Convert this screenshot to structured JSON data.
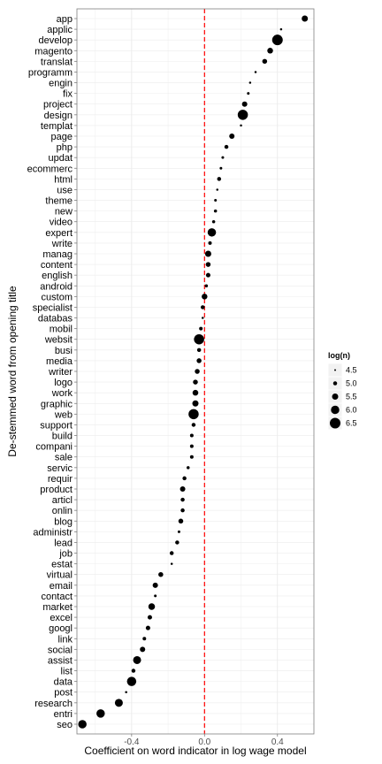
{
  "chart_data": {
    "type": "scatter",
    "title": "",
    "xlabel": "Coefficient on word indicator in log wage model",
    "ylabel": "De-stemmed word from opening title",
    "xlim": [
      -0.7,
      0.6
    ],
    "x_ticks": [
      -0.4,
      0.0,
      0.4
    ],
    "x_tick_labels": [
      "-0.4",
      "0.0",
      "0.4"
    ],
    "reference_line": {
      "x": 0.0,
      "color": "#ff0000",
      "style": "dashed"
    },
    "grid": true,
    "legend": {
      "title": "log(n)",
      "placement": "right",
      "values": [
        4.5,
        5.0,
        5.5,
        6.0,
        6.5
      ],
      "labels": [
        "4.5",
        "5.0",
        "5.5",
        "6.0",
        "6.5"
      ]
    },
    "size_range": [
      4.5,
      6.5
    ],
    "points": [
      {
        "label": "app",
        "x": 0.55,
        "logn": 5.5
      },
      {
        "label": "applic",
        "x": 0.42,
        "logn": 4.6
      },
      {
        "label": "develop",
        "x": 0.4,
        "logn": 6.5
      },
      {
        "label": "magento",
        "x": 0.36,
        "logn": 5.4
      },
      {
        "label": "translat",
        "x": 0.33,
        "logn": 5.2
      },
      {
        "label": "programm",
        "x": 0.28,
        "logn": 4.6
      },
      {
        "label": "engin",
        "x": 0.25,
        "logn": 4.6
      },
      {
        "label": "fix",
        "x": 0.24,
        "logn": 4.7
      },
      {
        "label": "project",
        "x": 0.22,
        "logn": 5.3
      },
      {
        "label": "design",
        "x": 0.21,
        "logn": 6.4
      },
      {
        "label": "templat",
        "x": 0.2,
        "logn": 4.6
      },
      {
        "label": "page",
        "x": 0.15,
        "logn": 5.3
      },
      {
        "label": "php",
        "x": 0.12,
        "logn": 5.0
      },
      {
        "label": "updat",
        "x": 0.1,
        "logn": 4.7
      },
      {
        "label": "ecommerc",
        "x": 0.09,
        "logn": 4.7
      },
      {
        "label": "html",
        "x": 0.08,
        "logn": 5.0
      },
      {
        "label": "use",
        "x": 0.07,
        "logn": 4.6
      },
      {
        "label": "theme",
        "x": 0.06,
        "logn": 4.7
      },
      {
        "label": "new",
        "x": 0.06,
        "logn": 4.8
      },
      {
        "label": "video",
        "x": 0.05,
        "logn": 4.8
      },
      {
        "label": "expert",
        "x": 0.04,
        "logn": 6.0
      },
      {
        "label": "write",
        "x": 0.03,
        "logn": 4.9
      },
      {
        "label": "manag",
        "x": 0.02,
        "logn": 5.5
      },
      {
        "label": "content",
        "x": 0.02,
        "logn": 5.2
      },
      {
        "label": "english",
        "x": 0.02,
        "logn": 5.1
      },
      {
        "label": "android",
        "x": 0.01,
        "logn": 4.8
      },
      {
        "label": "custom",
        "x": 0.0,
        "logn": 5.4
      },
      {
        "label": "specialist",
        "x": -0.01,
        "logn": 5.0
      },
      {
        "label": "databas",
        "x": -0.01,
        "logn": 4.6
      },
      {
        "label": "mobil",
        "x": -0.02,
        "logn": 4.9
      },
      {
        "label": "websit",
        "x": -0.03,
        "logn": 6.4
      },
      {
        "label": "busi",
        "x": -0.03,
        "logn": 5.0
      },
      {
        "label": "media",
        "x": -0.03,
        "logn": 5.2
      },
      {
        "label": "writer",
        "x": -0.04,
        "logn": 5.2
      },
      {
        "label": "logo",
        "x": -0.05,
        "logn": 5.2
      },
      {
        "label": "work",
        "x": -0.05,
        "logn": 5.4
      },
      {
        "label": "graphic",
        "x": -0.05,
        "logn": 5.5
      },
      {
        "label": "web",
        "x": -0.06,
        "logn": 6.4
      },
      {
        "label": "support",
        "x": -0.06,
        "logn": 5.0
      },
      {
        "label": "build",
        "x": -0.07,
        "logn": 4.9
      },
      {
        "label": "compani",
        "x": -0.07,
        "logn": 4.9
      },
      {
        "label": "sale",
        "x": -0.07,
        "logn": 4.9
      },
      {
        "label": "servic",
        "x": -0.09,
        "logn": 4.8
      },
      {
        "label": "requir",
        "x": -0.11,
        "logn": 5.0
      },
      {
        "label": "product",
        "x": -0.12,
        "logn": 5.3
      },
      {
        "label": "articl",
        "x": -0.12,
        "logn": 5.0
      },
      {
        "label": "onlin",
        "x": -0.12,
        "logn": 5.0
      },
      {
        "label": "blog",
        "x": -0.13,
        "logn": 5.2
      },
      {
        "label": "administr",
        "x": -0.14,
        "logn": 4.7
      },
      {
        "label": "lead",
        "x": -0.15,
        "logn": 5.0
      },
      {
        "label": "job",
        "x": -0.18,
        "logn": 5.0
      },
      {
        "label": "estat",
        "x": -0.18,
        "logn": 4.6
      },
      {
        "label": "virtual",
        "x": -0.24,
        "logn": 5.2
      },
      {
        "label": "email",
        "x": -0.27,
        "logn": 5.3
      },
      {
        "label": "contact",
        "x": -0.27,
        "logn": 4.7
      },
      {
        "label": "market",
        "x": -0.29,
        "logn": 5.6
      },
      {
        "label": "excel",
        "x": -0.3,
        "logn": 5.1
      },
      {
        "label": "googl",
        "x": -0.31,
        "logn": 5.1
      },
      {
        "label": "link",
        "x": -0.33,
        "logn": 4.9
      },
      {
        "label": "social",
        "x": -0.34,
        "logn": 5.3
      },
      {
        "label": "assist",
        "x": -0.37,
        "logn": 5.9
      },
      {
        "label": "list",
        "x": -0.39,
        "logn": 5.0
      },
      {
        "label": "data",
        "x": -0.4,
        "logn": 6.2
      },
      {
        "label": "post",
        "x": -0.43,
        "logn": 4.6
      },
      {
        "label": "research",
        "x": -0.47,
        "logn": 5.9
      },
      {
        "label": "entri",
        "x": -0.57,
        "logn": 6.0
      },
      {
        "label": "seo",
        "x": -0.67,
        "logn": 6.0
      }
    ]
  }
}
